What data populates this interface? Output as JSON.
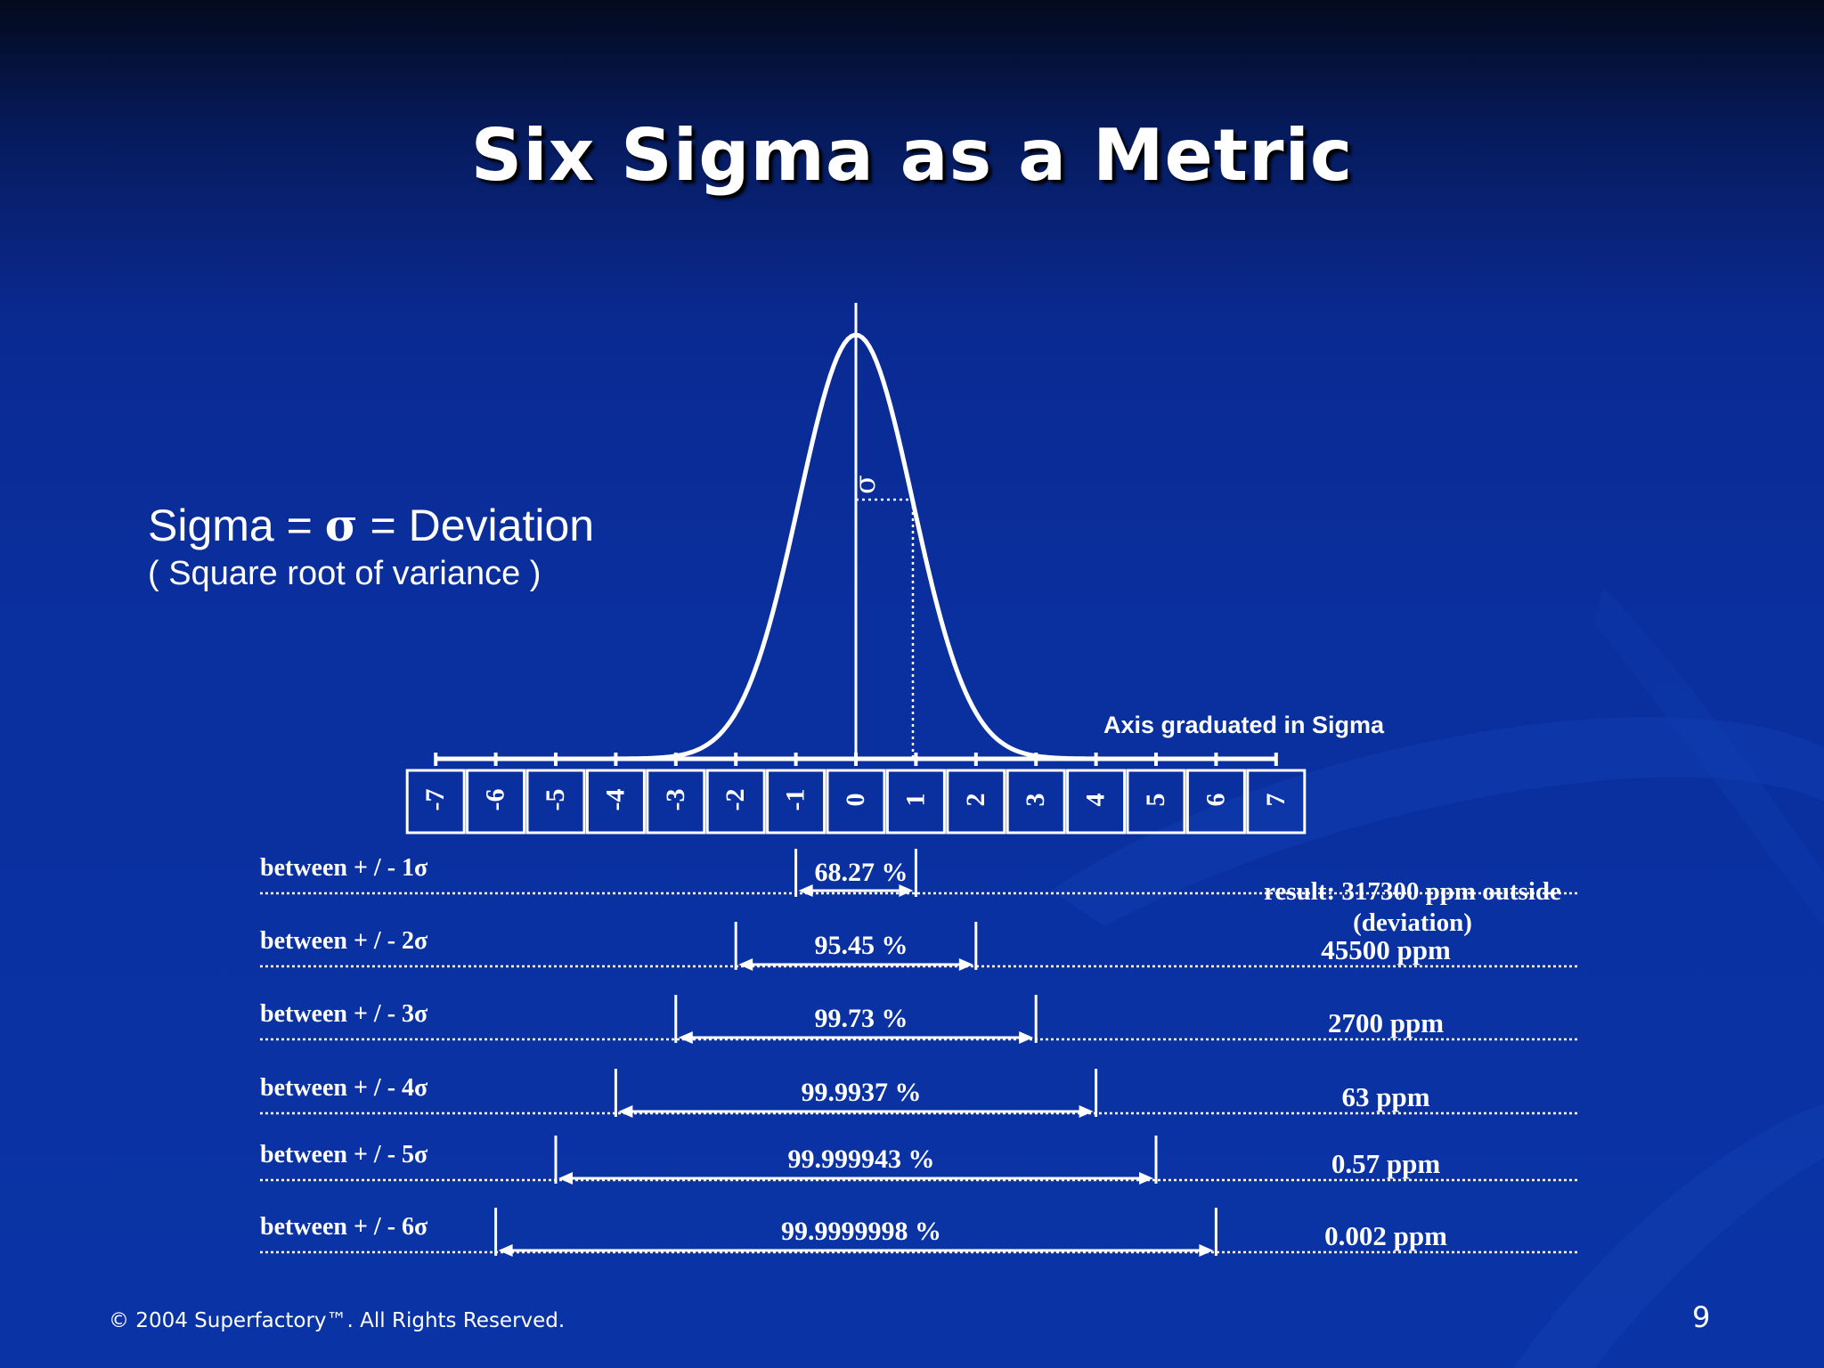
{
  "title": "Six Sigma as a Metric",
  "definition": {
    "term": "Sigma =",
    "symbol": "σ",
    "meaning": "= Deviation",
    "note": "( Square root of variance )"
  },
  "diagram": {
    "sigma_label": "σ",
    "axis_caption": "Axis graduated in Sigma",
    "axis_labels": [
      "-7",
      "-6",
      "-5",
      "-4",
      "-3",
      "-2",
      "-1",
      "0",
      "1",
      "2",
      "3",
      "4",
      "5",
      "6",
      "7"
    ],
    "rows": [
      {
        "label": "between + / - 1σ",
        "percent": "68.27 %",
        "result": "result:  317300  ppm outside",
        "result_note": "(deviation)"
      },
      {
        "label": "between  + / - 2σ",
        "percent": "95.45 %",
        "result": "45500  ppm"
      },
      {
        "label": "between  + / - 3σ",
        "percent": "99.73 %",
        "result": "2700  ppm"
      },
      {
        "label": "between  + / - 4σ",
        "percent": "99.9937 %",
        "result": "63  ppm"
      },
      {
        "label": "between  + / - 5σ",
        "percent": "99.999943 %",
        "result": "0.57  ppm"
      },
      {
        "label": "between  + / - 6σ",
        "percent": "99.9999998 %",
        "result": "0.002  ppm"
      }
    ]
  },
  "footer": "© 2004 Superfactory™.  All Rights Reserved.",
  "page_number": "9"
}
